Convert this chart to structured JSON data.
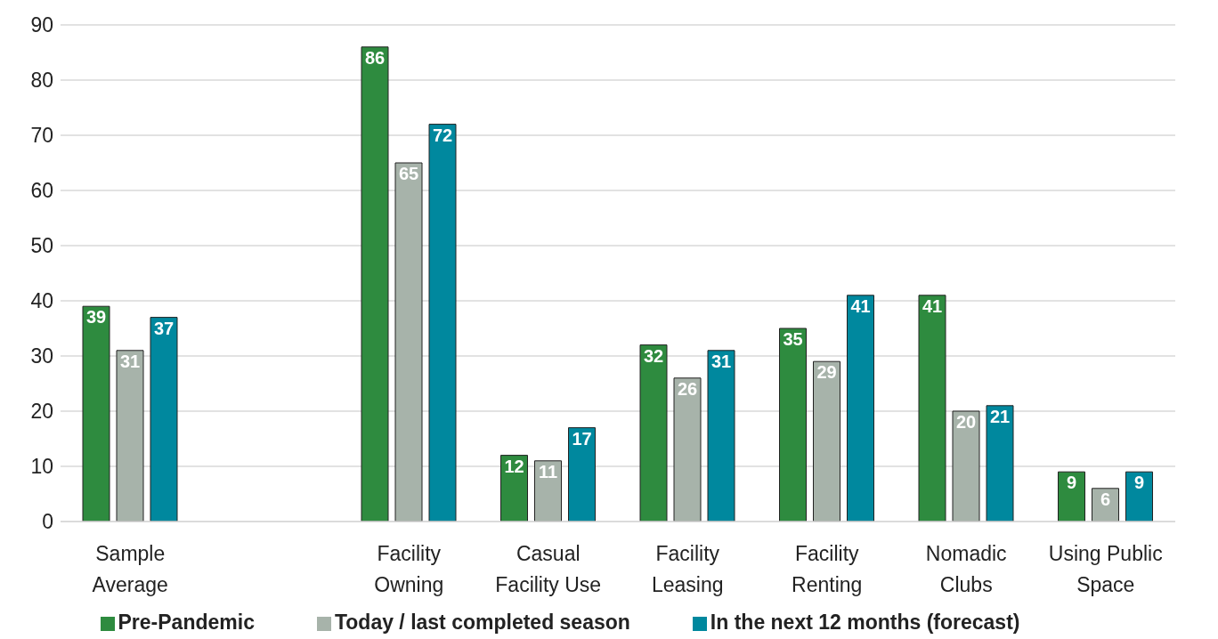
{
  "chart_data": {
    "type": "bar",
    "categories": [
      "Sample Average",
      null,
      "Facility Owning",
      "Casual Facility Use",
      "Facility Leasing",
      "Facility Renting",
      "Nomadic Clubs",
      "Using Public Space"
    ],
    "series": [
      {
        "name": "Pre-Pandemic",
        "color": "#2e8b3f",
        "values": [
          39,
          null,
          86,
          12,
          32,
          35,
          41,
          9
        ]
      },
      {
        "name": "Today / last completed season",
        "color": "#a7b3aa",
        "values": [
          31,
          null,
          65,
          11,
          26,
          29,
          20,
          6
        ]
      },
      {
        "name": "In the next 12 months (forecast)",
        "color": "#00889e",
        "values": [
          37,
          null,
          72,
          17,
          31,
          41,
          21,
          9
        ]
      }
    ],
    "ylim": [
      0,
      90
    ],
    "yticks": [
      0,
      10,
      20,
      30,
      40,
      50,
      60,
      70,
      80,
      90
    ],
    "grid": "y",
    "legend": "bottom",
    "data_labels": true
  }
}
